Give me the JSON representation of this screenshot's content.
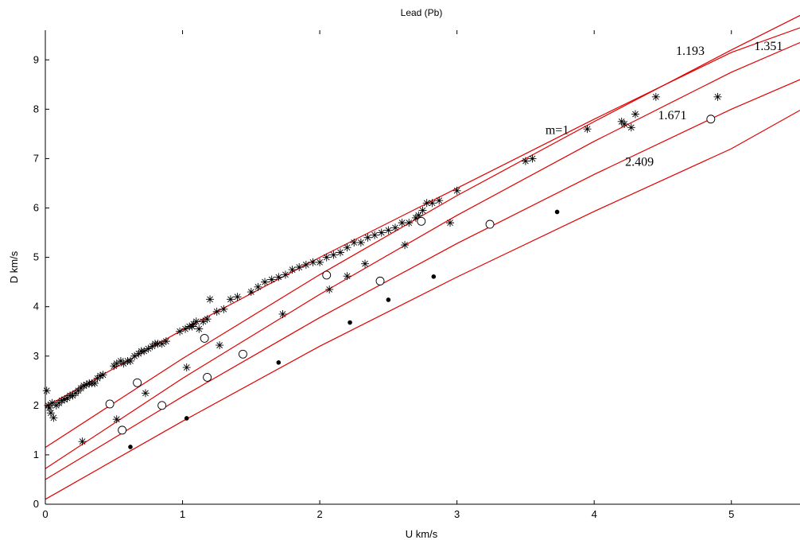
{
  "chart_data": {
    "type": "scatter",
    "title": "Lead (Pb)",
    "xlabel": "U km/s",
    "ylabel": "D km/s",
    "xlim": [
      0,
      5.5
    ],
    "ylim": [
      0,
      9.6
    ],
    "xticks": [
      0,
      1,
      2,
      3,
      4,
      5
    ],
    "yticks": [
      0,
      1,
      2,
      3,
      4,
      5,
      6,
      7,
      8,
      9
    ],
    "grid": false,
    "annotations": [
      {
        "text": "m=1",
        "x": 3.73,
        "y": 7.5
      },
      {
        "text": "1.193",
        "x": 4.7,
        "y": 9.1
      },
      {
        "text": "1.351",
        "x": 5.27,
        "y": 9.2
      },
      {
        "text": "1.671",
        "x": 4.57,
        "y": 7.8
      },
      {
        "text": "2.409",
        "x": 4.33,
        "y": 6.85
      }
    ],
    "curves": [
      {
        "points": [
          [
            0,
            1.97
          ],
          [
            1,
            3.53
          ],
          [
            2,
            5.0
          ],
          [
            3,
            6.4
          ],
          [
            4,
            7.8
          ],
          [
            5,
            9.15
          ],
          [
            5.5,
            9.65
          ]
        ]
      },
      {
        "points": [
          [
            0,
            1.15
          ],
          [
            1,
            2.95
          ],
          [
            2,
            4.65
          ],
          [
            3,
            6.25
          ],
          [
            4,
            7.75
          ],
          [
            5,
            9.2
          ],
          [
            5.5,
            9.9
          ]
        ]
      },
      {
        "points": [
          [
            0,
            0.72
          ],
          [
            1,
            2.55
          ],
          [
            2,
            4.25
          ],
          [
            3,
            5.85
          ],
          [
            4,
            7.35
          ],
          [
            5,
            8.75
          ],
          [
            5.5,
            9.35
          ]
        ]
      },
      {
        "points": [
          [
            0,
            0.5
          ],
          [
            1,
            2.18
          ],
          [
            2,
            3.78
          ],
          [
            3,
            5.28
          ],
          [
            4,
            6.68
          ],
          [
            5,
            8.0
          ],
          [
            5.5,
            8.6
          ]
        ]
      },
      {
        "points": [
          [
            0,
            0.1
          ],
          [
            1,
            1.68
          ],
          [
            2,
            3.2
          ],
          [
            3,
            4.6
          ],
          [
            4,
            5.93
          ],
          [
            5,
            7.2
          ],
          [
            5.5,
            7.98
          ]
        ]
      }
    ],
    "series": [
      {
        "marker": "asterisk",
        "points": [
          [
            0.01,
            2.3
          ],
          [
            0.02,
            2.0
          ],
          [
            0.03,
            1.95
          ],
          [
            0.04,
            1.85
          ],
          [
            0.05,
            2.05
          ],
          [
            0.06,
            1.75
          ],
          [
            0.08,
            2.0
          ],
          [
            0.1,
            2.05
          ],
          [
            0.12,
            2.1
          ],
          [
            0.14,
            2.12
          ],
          [
            0.16,
            2.15
          ],
          [
            0.18,
            2.2
          ],
          [
            0.2,
            2.2
          ],
          [
            0.22,
            2.25
          ],
          [
            0.24,
            2.3
          ],
          [
            0.26,
            2.35
          ],
          [
            0.28,
            2.4
          ],
          [
            0.3,
            2.42
          ],
          [
            0.32,
            2.45
          ],
          [
            0.34,
            2.45
          ],
          [
            0.36,
            2.45
          ],
          [
            0.38,
            2.55
          ],
          [
            0.4,
            2.6
          ],
          [
            0.42,
            2.62
          ],
          [
            0.5,
            2.8
          ],
          [
            0.52,
            2.85
          ],
          [
            0.55,
            2.9
          ],
          [
            0.57,
            2.85
          ],
          [
            0.6,
            2.9
          ],
          [
            0.62,
            2.9
          ],
          [
            0.65,
            3.0
          ],
          [
            0.68,
            3.05
          ],
          [
            0.7,
            3.1
          ],
          [
            0.72,
            3.1
          ],
          [
            0.75,
            3.15
          ],
          [
            0.78,
            3.2
          ],
          [
            0.8,
            3.25
          ],
          [
            0.82,
            3.25
          ],
          [
            0.85,
            3.25
          ],
          [
            0.88,
            3.3
          ],
          [
            0.98,
            3.5
          ],
          [
            1.02,
            3.55
          ],
          [
            1.05,
            3.6
          ],
          [
            1.07,
            3.6
          ],
          [
            1.08,
            3.65
          ],
          [
            1.1,
            3.7
          ],
          [
            1.12,
            3.55
          ],
          [
            1.15,
            3.7
          ],
          [
            1.18,
            3.75
          ],
          [
            1.2,
            4.15
          ],
          [
            1.25,
            3.9
          ],
          [
            1.3,
            3.95
          ],
          [
            1.35,
            4.15
          ],
          [
            1.4,
            4.2
          ],
          [
            1.5,
            4.3
          ],
          [
            1.55,
            4.4
          ],
          [
            1.6,
            4.5
          ],
          [
            1.65,
            4.55
          ],
          [
            1.7,
            4.6
          ],
          [
            1.75,
            4.65
          ],
          [
            1.8,
            4.75
          ],
          [
            1.85,
            4.8
          ],
          [
            1.9,
            4.85
          ],
          [
            1.95,
            4.9
          ],
          [
            2.0,
            4.9
          ],
          [
            2.05,
            5.0
          ],
          [
            2.1,
            5.05
          ],
          [
            2.15,
            5.1
          ],
          [
            2.2,
            5.2
          ],
          [
            2.25,
            5.3
          ],
          [
            2.3,
            5.3
          ],
          [
            2.35,
            5.4
          ],
          [
            2.4,
            5.45
          ],
          [
            2.45,
            5.5
          ],
          [
            2.5,
            5.55
          ],
          [
            2.55,
            5.6
          ],
          [
            2.6,
            5.7
          ],
          [
            2.65,
            5.7
          ],
          [
            2.7,
            5.8
          ],
          [
            2.72,
            5.85
          ],
          [
            2.75,
            5.95
          ],
          [
            2.78,
            6.1
          ],
          [
            2.82,
            6.1
          ],
          [
            2.87,
            6.15
          ],
          [
            3.0,
            6.35
          ],
          [
            3.5,
            6.95
          ],
          [
            3.55,
            7.0
          ],
          [
            3.95,
            7.6
          ],
          [
            4.2,
            7.75
          ],
          [
            4.22,
            7.7
          ],
          [
            4.3,
            7.9
          ],
          [
            4.45,
            8.25
          ],
          [
            4.9,
            8.25
          ],
          [
            0.27,
            1.27
          ],
          [
            0.52,
            1.72
          ],
          [
            0.73,
            2.25
          ],
          [
            1.03,
            2.77
          ],
          [
            1.27,
            3.22
          ],
          [
            1.73,
            3.85
          ],
          [
            2.07,
            4.35
          ],
          [
            2.2,
            4.62
          ],
          [
            2.33,
            4.87
          ],
          [
            2.62,
            5.25
          ],
          [
            2.95,
            5.7
          ],
          [
            4.27,
            7.63
          ]
        ]
      },
      {
        "marker": "open-circle",
        "points": [
          [
            0.47,
            2.03
          ],
          [
            0.56,
            1.5
          ],
          [
            0.67,
            2.46
          ],
          [
            0.85,
            2.0
          ],
          [
            1.16,
            3.36
          ],
          [
            1.18,
            2.57
          ],
          [
            1.44,
            3.04
          ],
          [
            2.05,
            4.64
          ],
          [
            2.44,
            4.52
          ],
          [
            2.74,
            5.73
          ],
          [
            3.24,
            5.67
          ],
          [
            4.85,
            7.8
          ]
        ]
      },
      {
        "marker": "filled-dot",
        "points": [
          [
            0.62,
            1.16
          ],
          [
            1.03,
            1.74
          ],
          [
            1.7,
            2.87
          ],
          [
            2.22,
            3.68
          ],
          [
            2.5,
            4.14
          ],
          [
            2.83,
            4.61
          ],
          [
            3.73,
            5.92
          ]
        ]
      }
    ]
  }
}
